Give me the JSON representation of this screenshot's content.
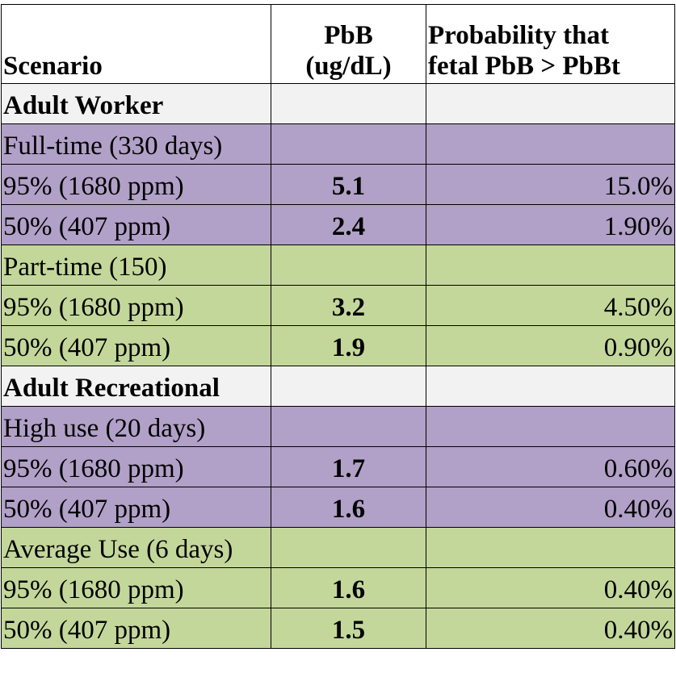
{
  "header": {
    "scenario": "Scenario",
    "pbb_line1": "PbB",
    "pbb_line2": "(ug/dL)",
    "prob_line1": "Probability that",
    "prob_line2": "fetal PbB > PbBt"
  },
  "rows": [
    {
      "type": "section",
      "label": "Adult Worker"
    },
    {
      "type": "group",
      "color": "#b1a0c7",
      "label": "Full-time (330 days)"
    },
    {
      "type": "data",
      "color": "#b1a0c7",
      "label": "95% (1680 ppm)",
      "pbb": "5.1",
      "prob": "15.0%"
    },
    {
      "type": "data",
      "color": "#b1a0c7",
      "label": "50% (407 ppm)",
      "pbb": "2.4",
      "prob": "1.90%"
    },
    {
      "type": "group",
      "color": "#c4d79b",
      "label": "Part-time (150)"
    },
    {
      "type": "data",
      "color": "#c4d79b",
      "label": "95% (1680 ppm)",
      "pbb": "3.2",
      "prob": "4.50%"
    },
    {
      "type": "data",
      "color": "#c4d79b",
      "label": "50% (407 ppm)",
      "pbb": "1.9",
      "prob": "0.90%"
    },
    {
      "type": "section",
      "label": "Adult Recreational"
    },
    {
      "type": "group",
      "color": "#b1a0c7",
      "label": "High use (20 days)"
    },
    {
      "type": "data",
      "color": "#b1a0c7",
      "label": "95% (1680 ppm)",
      "pbb": "1.7",
      "prob": "0.60%"
    },
    {
      "type": "data",
      "color": "#b1a0c7",
      "label": "50% (407 ppm)",
      "pbb": "1.6",
      "prob": "0.40%"
    },
    {
      "type": "group",
      "color": "#c4d79b",
      "label": "Average Use (6 days)"
    },
    {
      "type": "data",
      "color": "#c4d79b",
      "label": "95% (1680 ppm)",
      "pbb": "1.6",
      "prob": "0.40%"
    },
    {
      "type": "data",
      "color": "#c4d79b",
      "label": "50% (407 ppm)",
      "pbb": "1.5",
      "prob": "0.40%"
    }
  ]
}
